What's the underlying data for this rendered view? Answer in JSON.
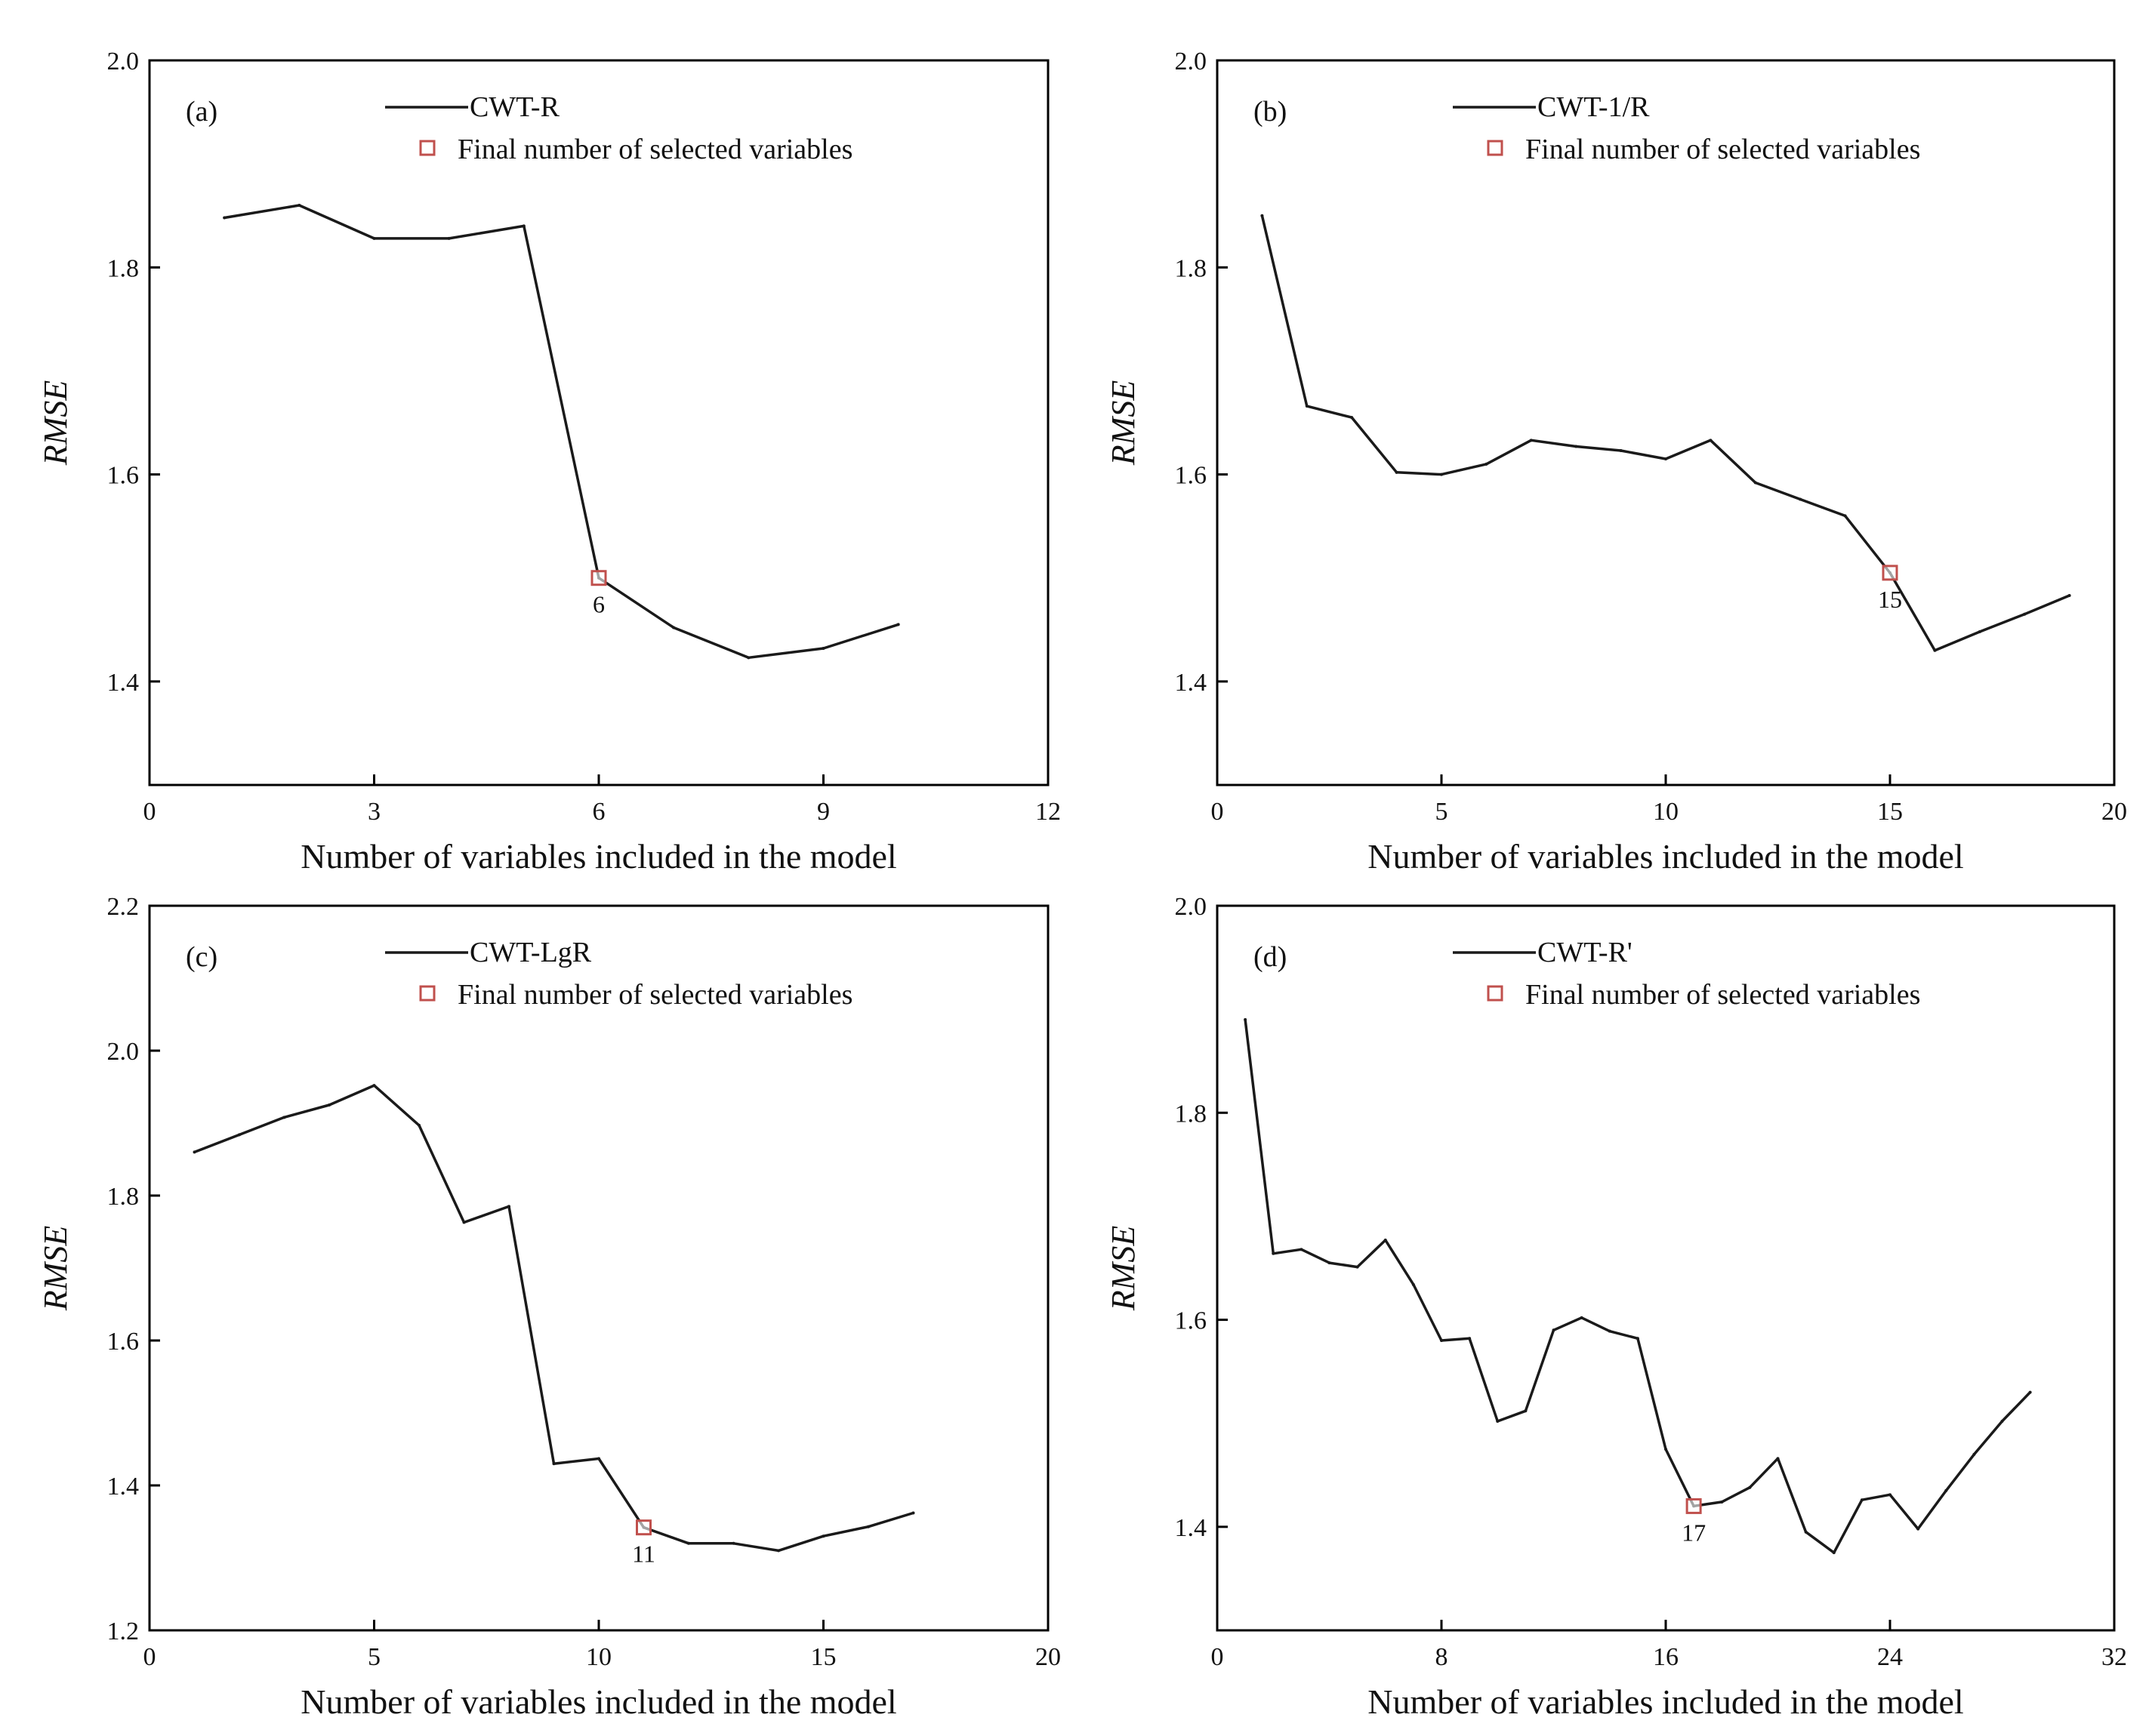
{
  "colors": {
    "line": "#1a1a1a",
    "marker": "#c0504d",
    "axis": "#000000"
  },
  "chart_data": [
    {
      "type": "line",
      "panel": "(a)",
      "series_name": "CWT-R",
      "marker_legend": "Final number of selected variables",
      "xlabel": "Number of variables included in the model",
      "ylabel": "RMSE",
      "xlim": [
        0,
        12
      ],
      "ylim": [
        1.3,
        2.0
      ],
      "xticks": [
        0,
        3,
        6,
        9,
        12
      ],
      "yticks": [
        1.4,
        1.6,
        1.8,
        2.0
      ],
      "x": [
        1,
        2,
        3,
        4,
        5,
        6,
        7,
        8,
        9,
        10
      ],
      "y": [
        1.848,
        1.86,
        1.828,
        1.828,
        1.84,
        1.5,
        1.452,
        1.423,
        1.432,
        1.455
      ],
      "selected": {
        "x": 6,
        "y": 1.5,
        "label": "6"
      }
    },
    {
      "type": "line",
      "panel": "(b)",
      "series_name": "CWT-1/R",
      "marker_legend": "Final number of selected variables",
      "xlabel": "Number of variables included in the model",
      "ylabel": "RMSE",
      "xlim": [
        0,
        20
      ],
      "ylim": [
        1.3,
        2.0
      ],
      "xticks": [
        0,
        5,
        10,
        15,
        20
      ],
      "yticks": [
        1.4,
        1.6,
        1.8,
        2.0
      ],
      "x": [
        1,
        2,
        3,
        4,
        5,
        6,
        7,
        8,
        9,
        10,
        11,
        12,
        13,
        14,
        15,
        16,
        17,
        18,
        19
      ],
      "y": [
        1.85,
        1.666,
        1.655,
        1.602,
        1.6,
        1.61,
        1.633,
        1.627,
        1.623,
        1.615,
        1.633,
        1.592,
        1.576,
        1.56,
        1.505,
        1.43,
        1.448,
        1.465,
        1.483
      ],
      "selected": {
        "x": 15,
        "y": 1.505,
        "label": "15"
      }
    },
    {
      "type": "line",
      "panel": "(c)",
      "series_name": "CWT-LgR",
      "marker_legend": "Final number of selected variables",
      "xlabel": "Number of variables included in the model",
      "ylabel": "RMSE",
      "xlim": [
        0,
        20
      ],
      "ylim": [
        1.2,
        2.2
      ],
      "xticks": [
        0,
        5,
        10,
        15,
        20
      ],
      "yticks": [
        1.2,
        1.4,
        1.6,
        1.8,
        2.0,
        2.2
      ],
      "x": [
        1,
        2,
        3,
        4,
        5,
        6,
        7,
        8,
        9,
        10,
        11,
        12,
        13,
        14,
        15,
        16,
        17
      ],
      "y": [
        1.86,
        1.884,
        1.908,
        1.925,
        1.952,
        1.897,
        1.763,
        1.785,
        1.43,
        1.437,
        1.342,
        1.32,
        1.32,
        1.31,
        1.33,
        1.343,
        1.362
      ],
      "selected": {
        "x": 11,
        "y": 1.342,
        "label": "11"
      }
    },
    {
      "type": "line",
      "panel": "(d)",
      "series_name": "CWT-R'",
      "marker_legend": "Final number of selected variables",
      "xlabel": "Number of variables included in the model",
      "ylabel": "RMSE",
      "xlim": [
        0,
        32
      ],
      "ylim": [
        1.3,
        2.0
      ],
      "xticks": [
        0,
        8,
        16,
        24,
        32
      ],
      "yticks": [
        1.4,
        1.6,
        1.8,
        2.0
      ],
      "x": [
        1,
        2,
        3,
        4,
        5,
        6,
        7,
        8,
        9,
        10,
        11,
        12,
        13,
        14,
        15,
        16,
        17,
        18,
        19,
        20,
        21,
        22,
        23,
        24,
        25,
        26,
        27,
        28,
        29
      ],
      "y": [
        1.89,
        1.664,
        1.668,
        1.655,
        1.651,
        1.677,
        1.634,
        1.58,
        1.582,
        1.502,
        1.512,
        1.59,
        1.602,
        1.589,
        1.582,
        1.475,
        1.42,
        1.424,
        1.438,
        1.466,
        1.395,
        1.375,
        1.426,
        1.431,
        1.398,
        1.435,
        1.47,
        1.502,
        1.53
      ],
      "selected": {
        "x": 17,
        "y": 1.42,
        "label": "17"
      }
    }
  ]
}
